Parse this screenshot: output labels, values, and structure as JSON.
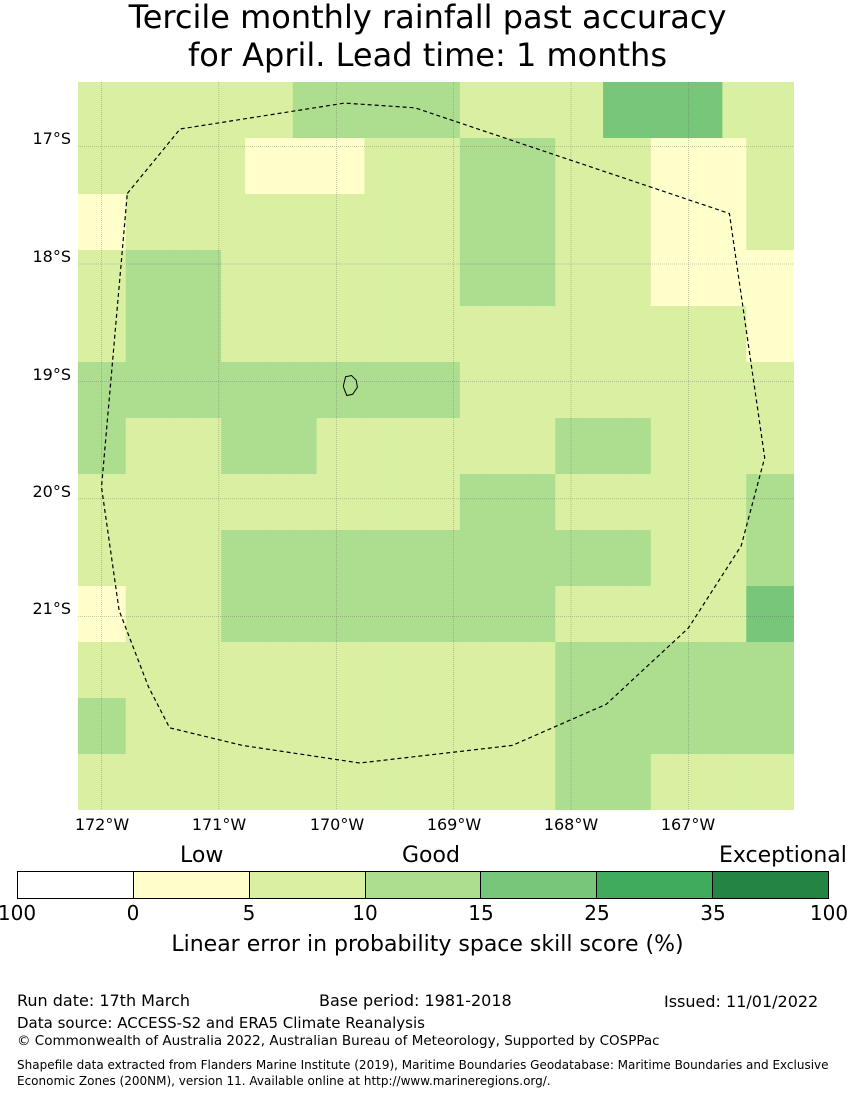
{
  "title": {
    "line1": "Tercile monthly rainfall past accuracy",
    "line2": "for April. Lead time: 1 months"
  },
  "map": {
    "lat_ticks": [
      "17°S",
      "18°S",
      "19°S",
      "20°S",
      "21°S"
    ],
    "lon_ticks": [
      "172°W",
      "171°W",
      "170°W",
      "169°W",
      "168°W",
      "167°W"
    ],
    "lon_range": [
      -172.2,
      -166.1
    ],
    "lat_range": [
      -16.45,
      -22.65
    ],
    "grid_cells": [
      [
        1,
        1,
        1,
        1,
        1,
        1,
        1,
        1,
        1,
        2,
        2,
        2,
        2,
        2,
        2,
        2,
        1,
        1,
        1,
        1,
        1,
        1,
        3,
        3,
        3,
        3,
        3,
        1,
        1,
        1
      ],
      [
        1,
        1,
        1,
        1,
        1,
        1,
        1,
        0,
        0,
        0,
        0,
        0,
        1,
        1,
        1,
        1,
        2,
        2,
        2,
        2,
        1,
        1,
        1,
        1,
        0,
        0,
        0,
        0,
        1,
        1
      ],
      [
        0,
        0,
        1,
        1,
        1,
        1,
        1,
        1,
        1,
        1,
        1,
        1,
        1,
        1,
        1,
        1,
        2,
        2,
        2,
        2,
        1,
        1,
        1,
        1,
        0,
        0,
        0,
        0,
        1,
        1
      ],
      [
        1,
        1,
        2,
        2,
        2,
        2,
        1,
        1,
        1,
        1,
        1,
        1,
        1,
        1,
        1,
        1,
        2,
        2,
        2,
        2,
        1,
        1,
        1,
        1,
        0,
        0,
        0,
        0,
        0,
        0
      ],
      [
        1,
        1,
        2,
        2,
        2,
        2,
        1,
        1,
        1,
        1,
        1,
        1,
        1,
        1,
        1,
        1,
        1,
        1,
        1,
        1,
        1,
        1,
        1,
        1,
        1,
        1,
        1,
        1,
        0,
        0
      ],
      [
        2,
        2,
        2,
        2,
        2,
        2,
        2,
        2,
        2,
        2,
        2,
        2,
        2,
        2,
        2,
        2,
        1,
        1,
        1,
        1,
        1,
        1,
        1,
        1,
        1,
        1,
        1,
        1,
        1,
        1
      ],
      [
        2,
        2,
        1,
        1,
        1,
        1,
        2,
        2,
        2,
        2,
        1,
        1,
        1,
        1,
        1,
        1,
        1,
        1,
        1,
        1,
        2,
        2,
        2,
        2,
        1,
        1,
        1,
        1,
        1,
        1
      ],
      [
        1,
        1,
        1,
        1,
        1,
        1,
        1,
        1,
        1,
        1,
        1,
        1,
        1,
        1,
        1,
        1,
        2,
        2,
        2,
        2,
        1,
        1,
        1,
        1,
        1,
        1,
        1,
        1,
        2,
        2
      ],
      [
        1,
        1,
        1,
        1,
        1,
        1,
        2,
        2,
        2,
        2,
        2,
        2,
        2,
        2,
        2,
        2,
        2,
        2,
        2,
        2,
        2,
        2,
        2,
        2,
        1,
        1,
        1,
        1,
        2,
        2
      ],
      [
        0,
        0,
        1,
        1,
        1,
        1,
        2,
        2,
        2,
        2,
        2,
        2,
        2,
        2,
        2,
        2,
        2,
        2,
        2,
        2,
        1,
        1,
        1,
        1,
        1,
        1,
        1,
        1,
        3,
        3
      ],
      [
        1,
        1,
        1,
        1,
        1,
        1,
        1,
        1,
        1,
        1,
        1,
        1,
        1,
        1,
        1,
        1,
        1,
        1,
        1,
        1,
        2,
        2,
        2,
        2,
        2,
        2,
        2,
        2,
        2,
        2
      ],
      [
        2,
        2,
        1,
        1,
        1,
        1,
        1,
        1,
        1,
        1,
        1,
        1,
        1,
        1,
        1,
        1,
        1,
        1,
        1,
        1,
        2,
        2,
        2,
        2,
        2,
        2,
        2,
        2,
        2,
        2
      ],
      [
        1,
        1,
        1,
        1,
        1,
        1,
        1,
        1,
        1,
        1,
        1,
        1,
        1,
        1,
        1,
        1,
        1,
        1,
        1,
        1,
        2,
        2,
        2,
        2,
        1,
        1,
        1,
        1,
        1,
        1
      ]
    ],
    "eez_boundary": [
      [
        -171.78,
        -17.4
      ],
      [
        -171.33,
        -16.85
      ],
      [
        -169.93,
        -16.63
      ],
      [
        -169.33,
        -16.67
      ],
      [
        -166.65,
        -17.57
      ],
      [
        -166.35,
        -19.65
      ],
      [
        -166.55,
        -20.4
      ],
      [
        -167.0,
        -21.1
      ],
      [
        -167.7,
        -21.75
      ],
      [
        -168.5,
        -22.1
      ],
      [
        -169.8,
        -22.25
      ],
      [
        -170.8,
        -22.1
      ],
      [
        -171.42,
        -21.95
      ],
      [
        -171.6,
        -21.6
      ],
      [
        -171.85,
        -20.95
      ],
      [
        -172.0,
        -19.9
      ],
      [
        -171.78,
        -17.4
      ]
    ],
    "island_outline": [
      [
        -169.92,
        -18.96
      ],
      [
        -169.87,
        -18.95
      ],
      [
        -169.83,
        -18.99
      ],
      [
        -169.82,
        -19.05
      ],
      [
        -169.86,
        -19.11
      ],
      [
        -169.91,
        -19.12
      ],
      [
        -169.93,
        -19.07
      ],
      [
        -169.94,
        -19.04
      ],
      [
        -169.92,
        -18.96
      ]
    ]
  },
  "legend": {
    "categories": [
      "Low",
      "Good",
      "Exceptional"
    ],
    "colors": [
      "#ffffff",
      "#ffffcc",
      "#d9f0a3",
      "#addd8e",
      "#78c679",
      "#41ab5d",
      "#238443"
    ],
    "ticks": [
      "100",
      "0",
      "5",
      "10",
      "15",
      "25",
      "35",
      "100"
    ],
    "label": "Linear error in probability space skill score (%)"
  },
  "footer": {
    "run_date": "Run date: 17th March",
    "base_period": "Base period: 1981-2018",
    "issued": "Issued: 11/01/2022",
    "data_source": "Data source: ACCESS-S2 and ERA5 Climate Reanalysis",
    "copyright": "© Commonwealth of Australia 2022, Australian Bureau of Meteorology, Supported by COSPPac",
    "shapefile_note": "Shapefile data extracted from Flanders Marine Institute (2019), Maritime Boundaries Geodatabase: Maritime Boundaries and Exclusive Economic Zones (200NM), version 11. Available online at http://www.marineregions.org/."
  }
}
